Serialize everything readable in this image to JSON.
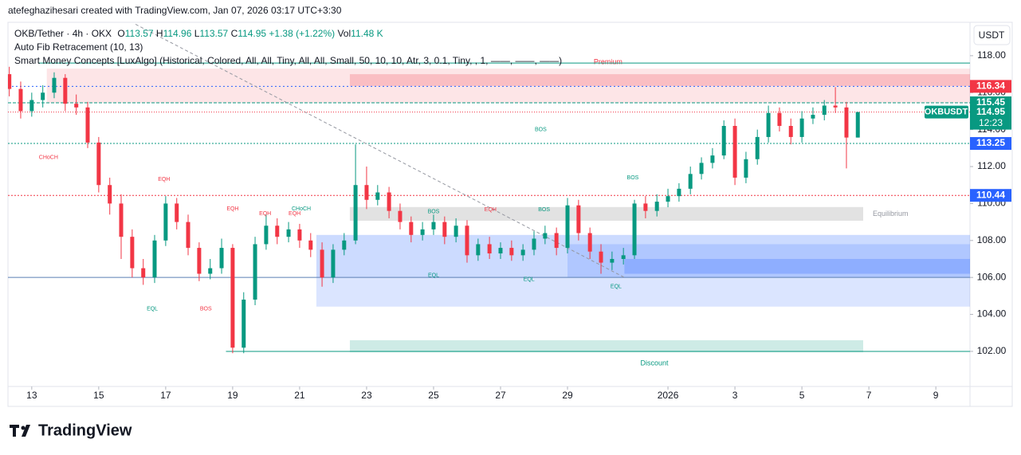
{
  "header": {
    "attribution": "atefeghazihesari created with TradingView.com, Jan 07, 2026 03:17 UTC+3:30",
    "logo": "TradingView"
  },
  "chart_data": {
    "type": "candlestick",
    "title": "OKB/Tether · 4h · OKX",
    "ohlc_labels": [
      "O",
      "H",
      "L",
      "C"
    ],
    "change": "+1.38 (+1.22%)",
    "volume_label": "Vol",
    "volume": "11.48 K",
    "indicators": [
      "Auto Fib Retracement (10, 13)",
      "Smart Money Concepts [LuxAlgo] (Historical, Colored, All, All, Tiny, All, All, Small, 50, 10, 10, Atr, 3, 0.1, Tiny, , 1, ——, ——, ——)"
    ],
    "currency": "USDT",
    "symbol": "OKBUSDT",
    "countdown": "12:23",
    "up_color": "#089981",
    "down_color": "#f23645",
    "x": [
      12.33,
      12.67,
      13,
      13.33,
      13.67,
      14,
      14.33,
      14.67,
      15,
      15.33,
      15.67,
      16,
      16.33,
      16.67,
      17,
      17.33,
      17.67,
      18,
      18.33,
      18.67,
      19,
      19.33,
      19.67,
      20,
      20.33,
      20.67,
      21,
      21.33,
      21.67,
      22,
      22.33,
      22.67,
      23,
      23.33,
      23.67,
      24,
      24.33,
      24.67,
      25,
      25.33,
      25.67,
      26,
      26.33,
      26.67,
      27,
      27.33,
      27.67,
      28,
      28.33,
      28.67,
      29,
      29.33,
      29.67,
      30,
      30.33,
      30.67,
      31,
      31.33,
      31.67,
      32,
      32.33,
      32.67,
      33,
      33.33,
      33.67,
      34,
      34.33,
      34.67,
      35,
      35.33,
      35.67,
      36,
      36.33,
      36.67,
      37,
      37.33,
      37.67
    ],
    "open": [
      117.0,
      116.2,
      115.0,
      115.6,
      116.0,
      116.8,
      115.4,
      115.2,
      113.3,
      111.0,
      110.0,
      108.2,
      106.5,
      106.0,
      108.0,
      110.0,
      109.0,
      107.6,
      106.2,
      106.5,
      107.6,
      102.2,
      104.8,
      107.8,
      108.8,
      108.2,
      108.6,
      108.0,
      107.5,
      106.0,
      107.5,
      108.0,
      111.0,
      110.2,
      110.6,
      109.6,
      109.0,
      108.3,
      108.6,
      109.0,
      108.2,
      108.8,
      107.2,
      107.8,
      107.3,
      107.6,
      107.2,
      107.5,
      108.1,
      108.4,
      107.6,
      109.9,
      108.4,
      107.4,
      106.8,
      107.0,
      107.2,
      110.0,
      109.6,
      110.1,
      110.4,
      110.8,
      111.6,
      112.2,
      112.6,
      114.2,
      111.4,
      112.4,
      113.6,
      114.9,
      114.2,
      113.6,
      114.6,
      114.8,
      115.3,
      115.2,
      113.57
    ],
    "high": [
      117.4,
      116.6,
      116.0,
      116.4,
      117.1,
      117.0,
      115.9,
      115.5,
      113.6,
      111.4,
      110.5,
      108.6,
      107.0,
      108.3,
      110.4,
      110.3,
      109.4,
      107.9,
      107.0,
      108.1,
      107.8,
      105.2,
      108.2,
      109.4,
      109.2,
      109.0,
      108.9,
      108.4,
      107.9,
      107.8,
      108.4,
      113.2,
      112.0,
      111.0,
      110.9,
      110.0,
      109.3,
      109.0,
      109.4,
      109.3,
      109.2,
      109.1,
      108.1,
      108.2,
      107.9,
      108.0,
      107.8,
      108.5,
      108.8,
      108.7,
      110.3,
      110.2,
      108.7,
      107.8,
      107.4,
      107.6,
      110.2,
      110.4,
      110.5,
      110.8,
      111.1,
      112.0,
      112.5,
      113.0,
      114.5,
      114.6,
      112.8,
      114.0,
      115.3,
      115.2,
      114.6,
      115.0,
      115.2,
      115.6,
      116.3,
      115.5,
      114.96
    ],
    "low": [
      115.8,
      114.6,
      114.7,
      115.2,
      115.7,
      115.0,
      114.8,
      113.0,
      110.6,
      109.4,
      107.0,
      106.0,
      105.6,
      105.7,
      107.7,
      108.6,
      107.2,
      105.8,
      105.9,
      106.2,
      101.9,
      101.9,
      104.5,
      107.5,
      107.8,
      107.9,
      107.6,
      107.1,
      105.5,
      105.7,
      107.2,
      107.8,
      109.7,
      109.9,
      109.2,
      108.6,
      107.9,
      108.0,
      108.3,
      107.8,
      107.9,
      106.8,
      106.9,
      107.0,
      107.0,
      106.9,
      106.9,
      107.2,
      107.8,
      107.2,
      107.3,
      108.0,
      107.0,
      106.2,
      106.4,
      106.7,
      107.0,
      109.2,
      109.3,
      109.8,
      110.1,
      110.5,
      111.3,
      111.9,
      112.4,
      111.0,
      111.1,
      112.1,
      113.3,
      113.9,
      113.2,
      113.3,
      114.3,
      114.5,
      114.9,
      111.9,
      113.57
    ],
    "close": [
      116.2,
      115.0,
      115.6,
      116.0,
      116.8,
      115.4,
      115.2,
      113.3,
      111.0,
      110.0,
      108.2,
      106.5,
      106.0,
      108.0,
      110.0,
      109.0,
      107.6,
      106.2,
      106.5,
      107.6,
      102.2,
      104.8,
      107.8,
      108.8,
      108.2,
      108.6,
      108.0,
      107.5,
      106.0,
      107.5,
      108.0,
      111.0,
      110.2,
      110.6,
      109.6,
      109.0,
      108.3,
      108.6,
      109.0,
      108.2,
      108.8,
      107.2,
      107.8,
      107.3,
      107.6,
      107.2,
      107.5,
      108.1,
      108.4,
      107.6,
      109.9,
      108.4,
      107.4,
      106.8,
      107.0,
      107.2,
      110.0,
      109.6,
      110.1,
      110.4,
      110.8,
      111.6,
      112.2,
      112.6,
      114.2,
      111.4,
      112.4,
      113.6,
      114.9,
      114.2,
      113.6,
      114.6,
      114.8,
      115.3,
      115.2,
      113.57,
      114.95
    ],
    "xlim": [
      12.29,
      41.02
    ],
    "xticks": [
      13,
      15,
      17,
      19,
      21,
      23,
      25,
      27,
      29,
      {
        "value": 32,
        "label": "2026"
      },
      {
        "value": 34,
        "label": "3"
      },
      {
        "value": 36,
        "label": "5"
      },
      {
        "value": 38,
        "label": "7"
      },
      {
        "value": 40,
        "label": "9"
      }
    ],
    "ylim": [
      100.1,
      119.72
    ],
    "yticks": [
      {
        "value": 102,
        "label": "102.00"
      },
      {
        "value": 104,
        "label": "104.00"
      },
      {
        "value": 106,
        "label": "106.00"
      },
      {
        "value": 108,
        "label": "108.00"
      },
      {
        "value": 110,
        "label": "110.00"
      },
      {
        "value": 112,
        "label": "112.00"
      },
      {
        "value": 114,
        "label": "114.00"
      },
      {
        "value": 116,
        "label": "116.00"
      },
      {
        "value": 118,
        "label": "118.00"
      }
    ],
    "zones": [
      {
        "name": "Premium",
        "from": 13.45,
        "to": 41.02,
        "low": 115.45,
        "high": 117.3,
        "color": "#f23645",
        "opacity": 0.13
      },
      {
        "from": 22.5,
        "to": 41.02,
        "low": 116.36,
        "high": 117.0,
        "color": "#f23645",
        "opacity": 0.22
      },
      {
        "name": "Equilibrium",
        "from": 22.5,
        "to": 37.83,
        "low": 109.07,
        "high": 109.81,
        "color": "#9e9e9e",
        "opacity": 0.3
      },
      {
        "name": "Discount",
        "from": 22.5,
        "to": 37.83,
        "low": 101.95,
        "high": 102.6,
        "color": "#089981",
        "opacity": 0.2
      },
      {
        "from": 21.5,
        "to": 41.02,
        "low": 104.42,
        "high": 108.3,
        "color": "#2962ff",
        "opacity": 0.17
      },
      {
        "from": 21.5,
        "to": 41.02,
        "low": 106.0,
        "high": 108.3,
        "color": "#2962ff",
        "opacity": 0.08
      },
      {
        "from": 29.0,
        "to": 41.02,
        "low": 106.0,
        "high": 107.8,
        "color": "#2962ff",
        "opacity": 0.17
      },
      {
        "from": 30.7,
        "to": 41.02,
        "low": 106.2,
        "high": 107.0,
        "color": "#2962ff",
        "opacity": 0.25
      }
    ],
    "price_lines": [
      {
        "value": 117.6,
        "color": "#089981",
        "dash": "",
        "from": 13.2
      },
      {
        "value": 116.34,
        "color": "#2962ff",
        "dash": "2 3",
        "from": 12.29,
        "tag_color": "#f23645"
      },
      {
        "value": 115.45,
        "color": "#089981",
        "dash": "4 2",
        "from": 12.29,
        "tag_color": "#089981"
      },
      {
        "value": 113.25,
        "color": "#089981",
        "dash": "2 2",
        "from": 12.29,
        "tag_color": "#2962ff"
      },
      {
        "value": 110.44,
        "color": "#f23645",
        "dash": "2 2",
        "from": 12.29,
        "tag_color": "#2962ff"
      },
      {
        "value": 106.0,
        "color": "#5b7fb5",
        "dash": "",
        "from": 12.29
      },
      {
        "value": 102.0,
        "color": "#089981",
        "dash": "",
        "from": 18.8
      }
    ],
    "trendline": {
      "x": [
        16.1,
        30.7
      ],
      "y": [
        119.7,
        106.0
      ],
      "color": "#9598a1"
    },
    "structure": [
      {
        "text": "CHoCH",
        "x": 13.5,
        "y": 112.5,
        "color": "#f23645"
      },
      {
        "text": "BOS",
        "x": 28.2,
        "y": 114.0,
        "color": "#089981"
      },
      {
        "text": "EQH",
        "x": 16.95,
        "y": 111.3,
        "color": "#f23645"
      },
      {
        "text": "EQL",
        "x": 16.6,
        "y": 104.3,
        "color": "#089981"
      },
      {
        "text": "BOS",
        "x": 18.2,
        "y": 104.3,
        "color": "#f23645"
      },
      {
        "text": "EQH",
        "x": 19.0,
        "y": 109.7,
        "color": "#f23645"
      },
      {
        "text": "EQH",
        "x": 19.97,
        "y": 109.45,
        "color": "#f23645"
      },
      {
        "text": "CHoCH",
        "x": 21.05,
        "y": 109.7,
        "color": "#089981"
      },
      {
        "text": "EQH",
        "x": 20.85,
        "y": 109.45,
        "color": "#f23645"
      },
      {
        "text": "BOS",
        "x": 25.0,
        "y": 109.55,
        "color": "#089981"
      },
      {
        "text": "EQH",
        "x": 26.7,
        "y": 109.66,
        "color": "#f23645"
      },
      {
        "text": "BOS",
        "x": 28.3,
        "y": 109.66,
        "color": "#089981"
      },
      {
        "text": "EQL",
        "x": 25.0,
        "y": 106.1,
        "color": "#089981"
      },
      {
        "text": "EQL",
        "x": 27.85,
        "y": 105.9,
        "color": "#089981"
      },
      {
        "text": "EQL",
        "x": 30.45,
        "y": 105.5,
        "color": "#089981"
      },
      {
        "text": "BOS",
        "x": 30.95,
        "y": 111.4,
        "color": "#089981"
      }
    ]
  }
}
